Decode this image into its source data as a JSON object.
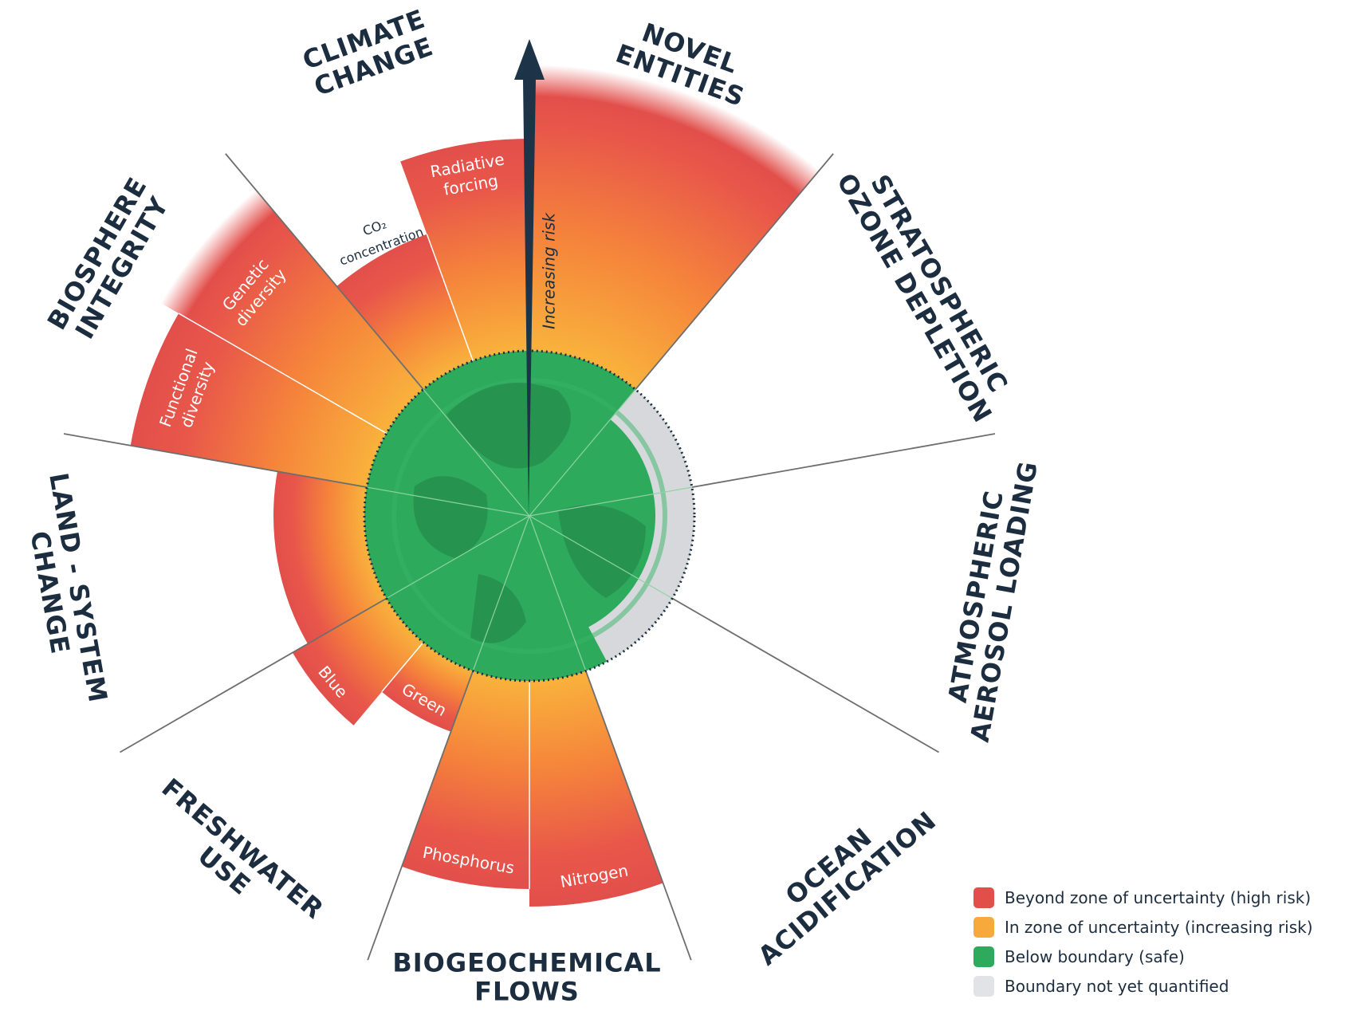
{
  "axis_label": "Increasing risk",
  "boundaries": [
    {
      "lines": [
        "CLIMATE",
        "CHANGE"
      ]
    },
    {
      "lines": [
        "NOVEL",
        "ENTITIES"
      ]
    },
    {
      "lines": [
        "STRATOSPHERIC",
        "OZONE DEPLETION"
      ]
    },
    {
      "lines": [
        "ATMOSPHERIC",
        "AEROSOL LOADING"
      ]
    },
    {
      "lines": [
        "OCEAN",
        "ACIDIFICATION"
      ]
    },
    {
      "lines": [
        "BIOGEOCHEMICAL",
        "FLOWS"
      ]
    },
    {
      "lines": [
        "FRESHWATER",
        "USE"
      ]
    },
    {
      "lines": [
        "LAND - SYSTEM",
        "CHANGE"
      ]
    },
    {
      "lines": [
        "BIOSPHERE",
        "INTEGRITY"
      ]
    }
  ],
  "sub_labels": [
    {
      "lines": [
        "CO₂",
        "concentration"
      ]
    },
    {
      "lines": [
        "Radiative",
        "forcing"
      ]
    },
    {
      "lines": [
        "Genetic",
        "diversity"
      ]
    },
    {
      "lines": [
        "Functional",
        "diversity"
      ]
    },
    {
      "lines": [
        "Blue"
      ]
    },
    {
      "lines": [
        "Green"
      ]
    },
    {
      "lines": [
        "Phosphorus"
      ]
    },
    {
      "lines": [
        "Nitrogen"
      ]
    }
  ],
  "legend": [
    {
      "label": "Beyond zone of uncertainty (high risk)",
      "color": "#e24f4b"
    },
    {
      "label": "In zone of uncertainty (increasing risk)",
      "color": "#f7a93b"
    },
    {
      "label": "Below boundary (safe)",
      "color": "#2eaa5c"
    },
    {
      "label": "Boundary not yet quantified",
      "color": "#e2e3e6"
    }
  ]
}
